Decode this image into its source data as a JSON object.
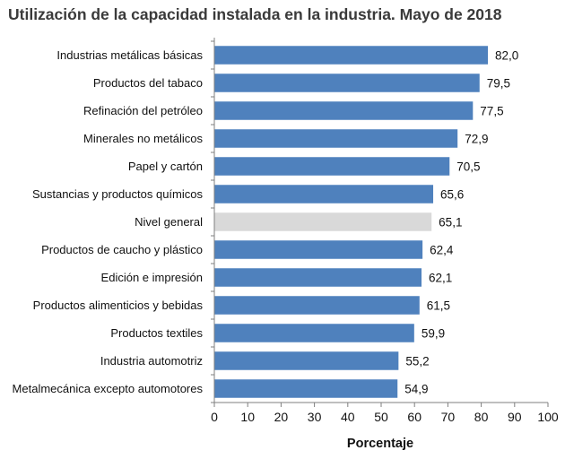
{
  "chart_data": {
    "type": "bar",
    "orientation": "horizontal",
    "title": "Utilización de la capacidad instalada en la industria. Mayo de 2018",
    "xlabel": "Porcentaje",
    "ylabel": "",
    "xlim": [
      0,
      100
    ],
    "x_ticks": [
      0,
      10,
      20,
      30,
      40,
      50,
      60,
      70,
      80,
      90,
      100
    ],
    "grid": false,
    "legend": "none",
    "categories": [
      "Industrias metálicas básicas",
      "Productos del tabaco",
      "Refinación del petróleo",
      "Minerales no metálicos",
      "Papel y cartón",
      "Sustancias y productos químicos",
      "Nivel general",
      "Productos de caucho y plástico",
      "Edición e impresión",
      "Productos alimenticios y bebidas",
      "Productos textiles",
      "Industria automotriz",
      "Metalmecánica excepto automotores"
    ],
    "values": [
      82.0,
      79.5,
      77.5,
      72.9,
      70.5,
      65.6,
      65.1,
      62.4,
      62.1,
      61.5,
      59.9,
      55.2,
      54.9
    ],
    "value_labels": [
      "82,0",
      "79,5",
      "77,5",
      "72,9",
      "70,5",
      "65,6",
      "65,1",
      "62,4",
      "62,1",
      "61,5",
      "59,9",
      "55,2",
      "54,9"
    ],
    "highlight_category": "Nivel general",
    "colors": {
      "bar": "#4f81bd",
      "highlight": "#d9d9d9"
    }
  }
}
